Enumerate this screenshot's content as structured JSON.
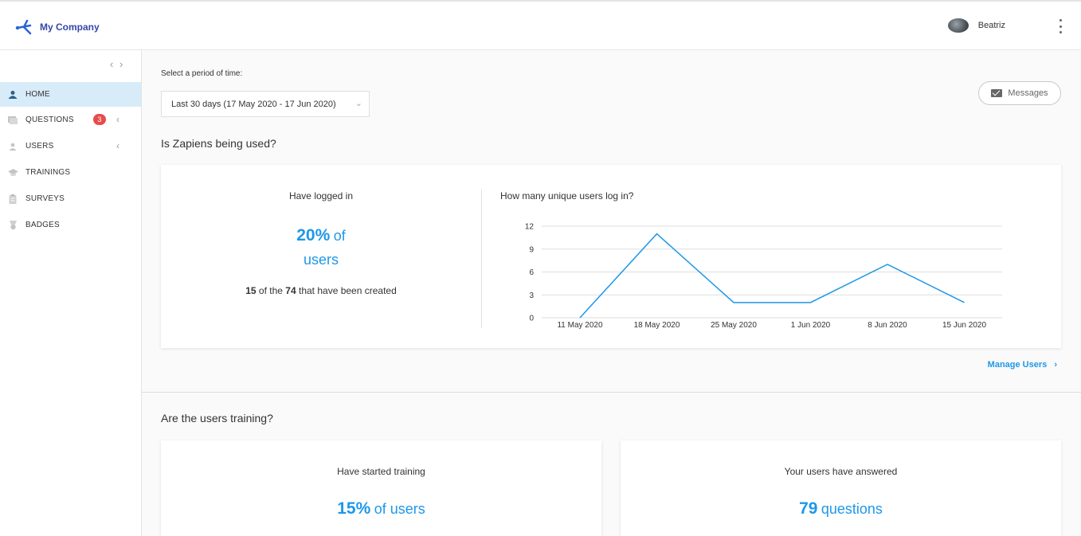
{
  "header": {
    "company_name": "My Company",
    "user_name": "Beatriz"
  },
  "sidebar": {
    "items": [
      {
        "label": "HOME",
        "icon": "home-icon",
        "active": true
      },
      {
        "label": "QUESTIONS",
        "icon": "questions-icon",
        "badge": "3"
      },
      {
        "label": "USERS",
        "icon": "users-icon"
      },
      {
        "label": "TRAININGS",
        "icon": "trainings-icon"
      },
      {
        "label": "SURVEYS",
        "icon": "surveys-icon"
      },
      {
        "label": "BADGES",
        "icon": "badges-icon"
      }
    ]
  },
  "filters": {
    "period_label": "Select a period of time:",
    "period_value": "Last 30 days (17 May 2020 - 17 Jun 2020)"
  },
  "messages_label": "Messages",
  "usage": {
    "title": "Is Zapiens being used?",
    "logged_title": "Have logged in",
    "logged_pct": "20%",
    "logged_of": "of",
    "logged_users": "users",
    "logged_count": "15",
    "logged_mid": "of the",
    "logged_total": "74",
    "logged_tail": "that have been created",
    "chart_title": "How many unique users log in?",
    "manage_label": "Manage Users"
  },
  "training": {
    "title": "Are the users training?",
    "started_title": "Have started training",
    "started_pct": "15%",
    "started_unit": "of users",
    "answered_title": "Your users have answered",
    "answered_count": "79",
    "answered_unit": "questions"
  },
  "chart_data": {
    "type": "line",
    "title": "How many unique users log in?",
    "categories": [
      "11 May 2020",
      "18 May 2020",
      "25 May 2020",
      "1 Jun 2020",
      "8 Jun 2020",
      "15 Jun 2020"
    ],
    "series": [
      {
        "values": [
          0,
          11,
          2,
          2,
          7,
          2
        ]
      }
    ],
    "ylim": [
      0,
      12
    ],
    "yticks": [
      0,
      3,
      6,
      9,
      12
    ],
    "grid": true,
    "color": "#1e98e8"
  }
}
